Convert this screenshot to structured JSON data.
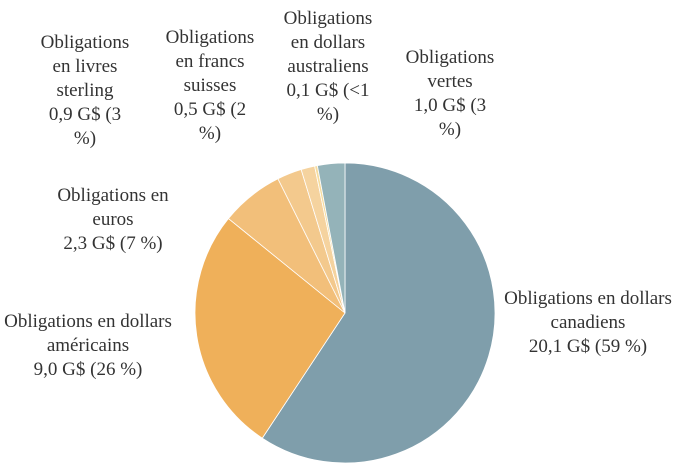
{
  "chart_data": {
    "type": "pie",
    "categories": [
      "Obligations en dollars canadiens",
      "Obligations en dollars américains",
      "Obligations en euros",
      "Obligations en livres sterling",
      "Obligations en francs suisses",
      "Obligations en dollars australiens",
      "Obligations vertes"
    ],
    "values": [
      20.1,
      9.0,
      2.3,
      0.9,
      0.5,
      0.1,
      1.0
    ],
    "value_labels": [
      "20,1 G$ (59 %)",
      "9,0 G$ (26 %)",
      "2,3 G$ (7 %)",
      "0,9 G$ (3 %)",
      "0,5 G$ (2 %)",
      "0,1 G$ (<1 %)",
      "1,0 G$ (3 %)"
    ],
    "colors": [
      "#7f9eab",
      "#efb05a",
      "#f2bf7a",
      "#f3c98d",
      "#f5d39f",
      "#f6dc9e",
      "#94b3b9"
    ]
  }
}
